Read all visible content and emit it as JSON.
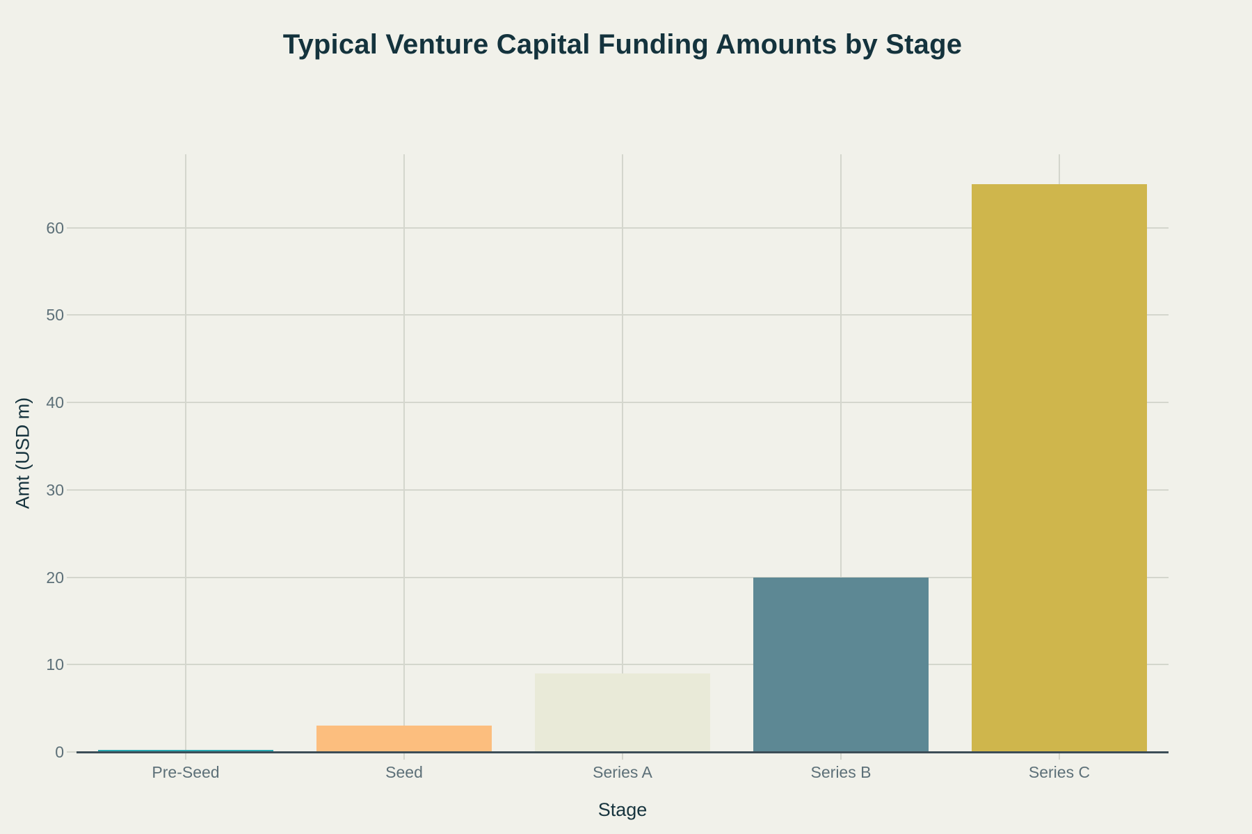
{
  "chart_data": {
    "type": "bar",
    "title": "Typical Venture Capital Funding Amounts by Stage",
    "categories": [
      "Pre-Seed",
      "Seed",
      "Series A",
      "Series B",
      "Series C"
    ],
    "values": [
      0.25,
      3,
      9,
      20,
      65
    ],
    "bar_colors": [
      "#29a7b0",
      "#fcbe7e",
      "#e9ead8",
      "#5d8894",
      "#cfb64c"
    ],
    "xlabel": "Stage",
    "ylabel": "Amt (USD m)",
    "yticks": [
      0,
      10,
      20,
      30,
      40,
      50,
      60
    ],
    "ylim": [
      0,
      68.4
    ],
    "grid": true,
    "legend": false,
    "colors": {
      "background": "#f1f1ea",
      "gridline": "#d4d6cd",
      "axis_line": "#3c4d57",
      "tick_label": "#5d7078",
      "axis_title": "#17343e",
      "title": "#14333d"
    }
  }
}
